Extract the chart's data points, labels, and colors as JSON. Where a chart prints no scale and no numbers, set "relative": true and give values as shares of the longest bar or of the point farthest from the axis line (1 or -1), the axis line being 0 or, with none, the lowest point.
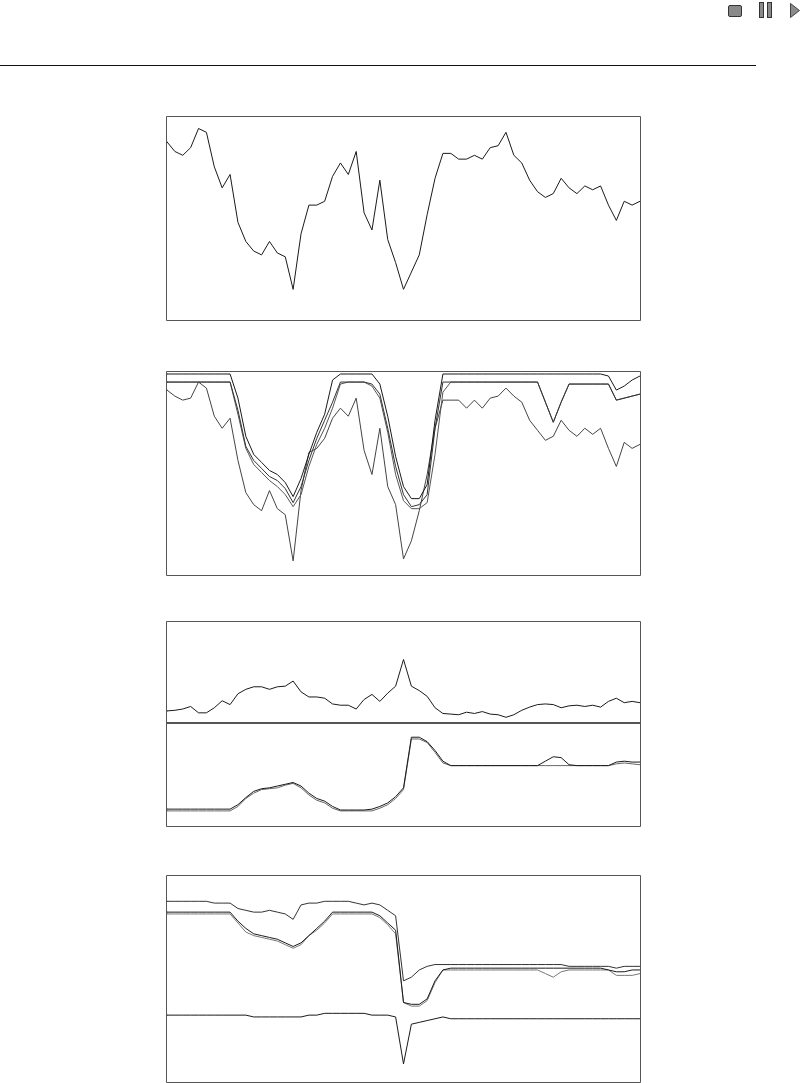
{
  "chart_data": [
    {
      "type": "line",
      "relative": true,
      "tick_labels": false,
      "categories": [
        null,
        null,
        null,
        null,
        null,
        null,
        null,
        null,
        null,
        null,
        null,
        null,
        null,
        null,
        null,
        null,
        null,
        null,
        null,
        null,
        null,
        null,
        null,
        null,
        null,
        null,
        null,
        null,
        null,
        null,
        null,
        null,
        null,
        null,
        null,
        null,
        null,
        null,
        null,
        null,
        null,
        null,
        null,
        null,
        null,
        null,
        null,
        null,
        null,
        null,
        null,
        null,
        null,
        null,
        null,
        null,
        null,
        null,
        null,
        null,
        null
      ],
      "series": [
        {
          "color": "#1a1a1a",
          "values": [
            0.93,
            0.88,
            0.86,
            0.9,
            1,
            0.98,
            0.8,
            0.69,
            0.76,
            0.51,
            0.41,
            0.36,
            0.34,
            0.41,
            0.35,
            0.33,
            0.16,
            0.45,
            0.6,
            0.6,
            0.62,
            0.75,
            0.82,
            0.76,
            0.88,
            0.56,
            0.47,
            0.73,
            0.42,
            0.3,
            0.16,
            0.25,
            0.34,
            0.55,
            0.74,
            0.87,
            0.87,
            0.84,
            0.84,
            0.86,
            0.84,
            0.9,
            0.91,
            0.98,
            0.86,
            0.82,
            0.73,
            0.67,
            0.64,
            0.66,
            0.74,
            0.69,
            0.66,
            0.7,
            0.68,
            0.7,
            0.6,
            0.52,
            0.62,
            0.6,
            0.62
          ]
        }
      ]
    },
    {
      "type": "line",
      "relative": true,
      "tick_labels": false,
      "categories": [
        null,
        null,
        null,
        null,
        null,
        null,
        null,
        null,
        null,
        null,
        null,
        null,
        null,
        null,
        null,
        null,
        null,
        null,
        null,
        null,
        null,
        null,
        null,
        null,
        null,
        null,
        null,
        null,
        null,
        null,
        null,
        null,
        null,
        null,
        null,
        null,
        null,
        null,
        null,
        null,
        null,
        null,
        null,
        null,
        null,
        null,
        null,
        null,
        null,
        null,
        null,
        null,
        null,
        null,
        null,
        null,
        null,
        null,
        null,
        null,
        null
      ],
      "series": [
        {
          "color": "#1a1a1a",
          "values": [
            1,
            1,
            1,
            1,
            1,
            1,
            1,
            1,
            1,
            0.88,
            0.69,
            0.6,
            0.56,
            0.52,
            0.5,
            0.46,
            0.39,
            0.48,
            0.6,
            0.71,
            0.8,
            0.97,
            1,
            1,
            1,
            1,
            1,
            0.95,
            0.79,
            0.59,
            0.44,
            0.38,
            0.38,
            0.45,
            0.77,
            1,
            1,
            1,
            1,
            1,
            1,
            1,
            1,
            1,
            1,
            1,
            1,
            1,
            1,
            1,
            1,
            1,
            1,
            1,
            1,
            1,
            0.99,
            0.92,
            0.94,
            0.97,
            0.99
          ]
        },
        {
          "color": "#333333",
          "values": [
            0.96,
            0.96,
            0.96,
            0.96,
            0.96,
            0.96,
            0.96,
            0.96,
            0.96,
            0.82,
            0.64,
            0.57,
            0.53,
            0.49,
            0.47,
            0.43,
            0.36,
            0.44,
            0.57,
            0.68,
            0.77,
            0.86,
            0.96,
            0.96,
            0.96,
            0.96,
            0.95,
            0.9,
            0.73,
            0.54,
            0.4,
            0.34,
            0.35,
            0.4,
            0.73,
            0.96,
            0.96,
            0.96,
            0.96,
            0.96,
            0.96,
            0.96,
            0.96,
            0.96,
            0.96,
            0.96,
            0.96,
            0.96,
            0.86,
            0.76,
            0.86,
            0.95,
            0.95,
            0.95,
            0.95,
            0.95,
            0.95,
            0.87,
            0.88,
            0.89,
            0.9
          ]
        },
        {
          "color": "#555555",
          "values": [
            0.96,
            0.96,
            0.96,
            0.96,
            0.96,
            0.96,
            0.96,
            0.96,
            0.96,
            0.8,
            0.63,
            0.55,
            0.51,
            0.47,
            0.44,
            0.4,
            0.34,
            0.4,
            0.54,
            0.65,
            0.73,
            0.83,
            0.95,
            0.96,
            0.96,
            0.96,
            0.94,
            0.88,
            0.71,
            0.5,
            0.37,
            0.33,
            0.33,
            0.36,
            0.6,
            0.91,
            0.96,
            0.96,
            0.96,
            0.96,
            0.96,
            0.96,
            0.96,
            0.96,
            0.96,
            0.96,
            0.96,
            0.96,
            0.86,
            0.76,
            0.86,
            0.95,
            0.95,
            0.95,
            0.95,
            0.95,
            0.95,
            0.87,
            0.88,
            0.89,
            0.9
          ]
        },
        {
          "color": "#444444",
          "values": [
            0.92,
            0.89,
            0.87,
            0.88,
            0.96,
            0.93,
            0.79,
            0.73,
            0.78,
            0.57,
            0.41,
            0.35,
            0.32,
            0.42,
            0.33,
            0.3,
            0.07,
            0.42,
            0.61,
            0.63,
            0.68,
            0.78,
            0.83,
            0.79,
            0.88,
            0.62,
            0.5,
            0.73,
            0.44,
            0.35,
            0.08,
            0.17,
            0.32,
            0.5,
            0.73,
            0.87,
            0.87,
            0.87,
            0.83,
            0.87,
            0.83,
            0.88,
            0.89,
            0.93,
            0.89,
            0.86,
            0.77,
            0.72,
            0.67,
            0.69,
            0.77,
            0.72,
            0.69,
            0.73,
            0.7,
            0.73,
            0.63,
            0.54,
            0.66,
            0.63,
            0.65
          ]
        }
      ]
    },
    {
      "type": "line",
      "relative": true,
      "tick_labels": false,
      "categories": [
        null,
        null,
        null,
        null,
        null,
        null,
        null,
        null,
        null,
        null,
        null,
        null,
        null,
        null,
        null,
        null,
        null,
        null,
        null,
        null,
        null,
        null,
        null,
        null,
        null,
        null,
        null,
        null,
        null,
        null,
        null,
        null,
        null,
        null,
        null,
        null,
        null,
        null,
        null,
        null,
        null,
        null,
        null,
        null,
        null,
        null,
        null,
        null,
        null,
        null,
        null,
        null,
        null,
        null,
        null,
        null,
        null,
        null,
        null,
        null,
        null
      ],
      "series": [
        {
          "color": "#1a1a1a",
          "values": [
            0.19,
            0.2,
            0.22,
            0.26,
            0.16,
            0.16,
            0.24,
            0.35,
            0.29,
            0.46,
            0.53,
            0.57,
            0.57,
            0.53,
            0.57,
            0.58,
            0.66,
            0.49,
            0.41,
            0.41,
            0.39,
            0.3,
            0.28,
            0.28,
            0.22,
            0.37,
            0.45,
            0.34,
            0.47,
            0.58,
            1,
            0.58,
            0.51,
            0.42,
            0.24,
            0.15,
            0.14,
            0.13,
            0.17,
            0.15,
            0.18,
            0.14,
            0.13,
            0.09,
            0.13,
            0.2,
            0.25,
            0.29,
            0.3,
            0.29,
            0.24,
            0.27,
            0.28,
            0.26,
            0.28,
            0.25,
            0.34,
            0.39,
            0.32,
            0.34,
            0.32
          ]
        }
      ]
    },
    {
      "type": "line",
      "relative": true,
      "tick_labels": false,
      "categories": [
        null,
        null,
        null,
        null,
        null,
        null,
        null,
        null,
        null,
        null,
        null,
        null,
        null,
        null,
        null,
        null,
        null,
        null,
        null,
        null,
        null,
        null,
        null,
        null,
        null,
        null,
        null,
        null,
        null,
        null,
        null,
        null,
        null,
        null,
        null,
        null,
        null,
        null,
        null,
        null,
        null,
        null,
        null,
        null,
        null,
        null,
        null,
        null,
        null,
        null,
        null,
        null,
        null,
        null,
        null,
        null,
        null,
        null,
        null,
        null,
        null
      ],
      "series": [
        {
          "color": "#1a1a1a",
          "values": [
            0.19,
            0.19,
            0.19,
            0.19,
            0.19,
            0.19,
            0.19,
            0.19,
            0.19,
            0.24,
            0.32,
            0.39,
            0.42,
            0.43,
            0.45,
            0.47,
            0.49,
            0.45,
            0.37,
            0.31,
            0.28,
            0.22,
            0.18,
            0.18,
            0.18,
            0.18,
            0.19,
            0.22,
            0.26,
            0.33,
            0.43,
            1,
            1,
            0.95,
            0.85,
            0.73,
            0.68,
            0.68,
            0.68,
            0.68,
            0.68,
            0.68,
            0.68,
            0.68,
            0.68,
            0.68,
            0.68,
            0.68,
            0.73,
            0.78,
            0.77,
            0.69,
            0.68,
            0.68,
            0.68,
            0.68,
            0.68,
            0.72,
            0.73,
            0.72,
            0.72
          ]
        },
        {
          "color": "#666666",
          "values": [
            0.17,
            0.17,
            0.17,
            0.17,
            0.17,
            0.17,
            0.17,
            0.17,
            0.17,
            0.22,
            0.31,
            0.37,
            0.41,
            0.42,
            0.43,
            0.46,
            0.48,
            0.43,
            0.35,
            0.29,
            0.26,
            0.2,
            0.17,
            0.17,
            0.17,
            0.17,
            0.17,
            0.2,
            0.24,
            0.31,
            0.41,
            0.98,
            0.98,
            0.94,
            0.83,
            0.71,
            0.68,
            0.68,
            0.68,
            0.68,
            0.68,
            0.68,
            0.68,
            0.68,
            0.68,
            0.68,
            0.68,
            0.68,
            0.68,
            0.68,
            0.68,
            0.68,
            0.68,
            0.68,
            0.68,
            0.68,
            0.68,
            0.7,
            0.71,
            0.7,
            0.69
          ]
        }
      ]
    },
    {
      "type": "line",
      "relative": true,
      "tick_labels": false,
      "categories": [
        null,
        null,
        null,
        null,
        null,
        null,
        null,
        null,
        null,
        null,
        null,
        null,
        null,
        null,
        null,
        null,
        null,
        null,
        null,
        null,
        null,
        null,
        null,
        null,
        null,
        null,
        null,
        null,
        null,
        null,
        null,
        null,
        null,
        null,
        null,
        null,
        null,
        null,
        null,
        null,
        null,
        null,
        null,
        null,
        null,
        null,
        null,
        null,
        null,
        null,
        null,
        null,
        null,
        null,
        null,
        null,
        null,
        null,
        null,
        null,
        null
      ],
      "series": [
        {
          "color": "#333333",
          "values": [
            1,
            1,
            1,
            1,
            1,
            1,
            0.99,
            0.99,
            0.99,
            0.96,
            0.95,
            0.94,
            0.94,
            0.95,
            0.94,
            0.93,
            0.9,
            0.98,
            0.99,
            0.99,
            1,
            1,
            1,
            1,
            0.99,
            0.98,
            0.99,
            0.98,
            0.95,
            0.92,
            0.56,
            0.58,
            0.62,
            0.64,
            0.65,
            0.65,
            0.65,
            0.65,
            0.65,
            0.65,
            0.65,
            0.65,
            0.65,
            0.65,
            0.65,
            0.65,
            0.65,
            0.65,
            0.65,
            0.65,
            0.65,
            0.64,
            0.64,
            0.64,
            0.64,
            0.64,
            0.64,
            0.63,
            0.64,
            0.64,
            0.64
          ]
        },
        {
          "color": "#1a1a1a",
          "values": [
            0.94,
            0.94,
            0.94,
            0.94,
            0.94,
            0.94,
            0.94,
            0.94,
            0.94,
            0.89,
            0.85,
            0.82,
            0.81,
            0.8,
            0.79,
            0.77,
            0.75,
            0.77,
            0.81,
            0.85,
            0.89,
            0.94,
            0.94,
            0.94,
            0.94,
            0.94,
            0.94,
            0.92,
            0.88,
            0.84,
            0.44,
            0.43,
            0.43,
            0.46,
            0.56,
            0.62,
            0.63,
            0.63,
            0.63,
            0.63,
            0.63,
            0.63,
            0.63,
            0.63,
            0.63,
            0.63,
            0.63,
            0.63,
            0.63,
            0.63,
            0.63,
            0.63,
            0.63,
            0.63,
            0.63,
            0.63,
            0.62,
            0.61,
            0.61,
            0.62,
            0.62
          ]
        },
        {
          "color": "#777777",
          "values": [
            0.93,
            0.93,
            0.93,
            0.93,
            0.93,
            0.93,
            0.93,
            0.93,
            0.93,
            0.88,
            0.83,
            0.81,
            0.8,
            0.79,
            0.78,
            0.76,
            0.74,
            0.76,
            0.81,
            0.84,
            0.88,
            0.93,
            0.93,
            0.93,
            0.93,
            0.93,
            0.93,
            0.91,
            0.87,
            0.82,
            0.44,
            0.42,
            0.42,
            0.45,
            0.55,
            0.62,
            0.62,
            0.62,
            0.62,
            0.62,
            0.62,
            0.62,
            0.62,
            0.62,
            0.62,
            0.62,
            0.62,
            0.62,
            0.6,
            0.58,
            0.61,
            0.62,
            0.62,
            0.62,
            0.62,
            0.62,
            0.62,
            0.59,
            0.59,
            0.59,
            0.6
          ]
        },
        {
          "color": "#1a1a1a",
          "values": [
            0.37,
            0.37,
            0.37,
            0.37,
            0.37,
            0.37,
            0.37,
            0.37,
            0.37,
            0.37,
            0.37,
            0.36,
            0.36,
            0.36,
            0.36,
            0.36,
            0.36,
            0.36,
            0.37,
            0.37,
            0.38,
            0.38,
            0.38,
            0.38,
            0.38,
            0.38,
            0.37,
            0.37,
            0.37,
            0.36,
            0.1,
            0.32,
            0.33,
            0.34,
            0.35,
            0.36,
            0.35,
            0.35,
            0.35,
            0.35,
            0.35,
            0.35,
            0.35,
            0.35,
            0.35,
            0.35,
            0.35,
            0.35,
            0.35,
            0.35,
            0.35,
            0.35,
            0.35,
            0.35,
            0.35,
            0.35,
            0.35,
            0.35,
            0.35,
            0.35,
            0.35
          ]
        }
      ]
    }
  ]
}
